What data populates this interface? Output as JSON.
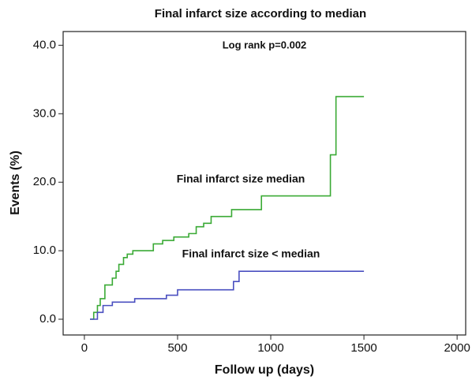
{
  "chart_data": {
    "type": "step",
    "title": "Final infarct size according to median",
    "annotation": "Log rank p=0.002",
    "x_label": "Follow up (days)",
    "y_label": "Events (%)",
    "xlim": [
      -114,
      2046
    ],
    "ylim": [
      -2.3,
      42
    ],
    "xticks": [
      0,
      500,
      1000,
      1500,
      2000
    ],
    "yticks": [
      {
        "value": 0,
        "label": "0.0"
      },
      {
        "value": 10,
        "label": "10.0"
      },
      {
        "value": 20,
        "label": "20.0"
      },
      {
        "value": 30,
        "label": "30.0"
      },
      {
        "value": 40,
        "label": "40.0"
      }
    ],
    "series": [
      {
        "name": "Final infarct size  median",
        "color": "#3aaa35",
        "x": [
          30,
          50,
          70,
          85,
          110,
          150,
          170,
          185,
          210,
          230,
          260,
          370,
          420,
          480,
          560,
          600,
          640,
          680,
          790,
          950,
          1320,
          1350,
          1500
        ],
        "values": [
          0,
          1,
          2,
          3,
          5,
          6,
          7,
          8,
          9,
          9.5,
          10,
          11,
          11.5,
          12,
          12.5,
          13.5,
          14,
          15,
          16,
          18,
          24,
          32.5,
          32.5
        ]
      },
      {
        "name": "Final infarct size < median",
        "color": "#4a4fc0",
        "x": [
          30,
          70,
          100,
          150,
          270,
          440,
          500,
          800,
          830,
          1500
        ],
        "values": [
          0,
          1,
          2,
          2.5,
          3,
          3.5,
          4.3,
          5.5,
          7,
          7
        ]
      }
    ]
  }
}
